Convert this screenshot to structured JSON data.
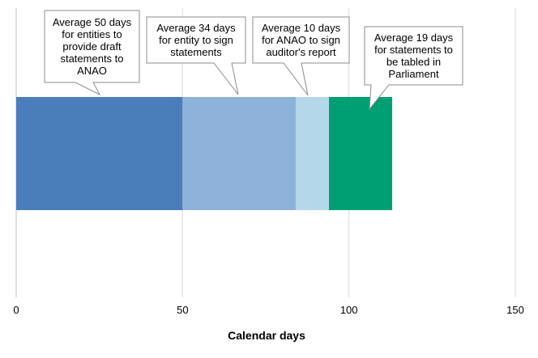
{
  "chart_data": {
    "type": "bar",
    "orientation": "horizontal",
    "stacked": true,
    "xlabel": "Calendar days",
    "ylabel": "",
    "title": "",
    "xlim": [
      0,
      150
    ],
    "x_ticks": [
      0,
      50,
      100,
      150
    ],
    "grid": true,
    "series": [
      {
        "values": [
          50
        ],
        "color": "#4a7ebb",
        "callout": "Average 50 days\nfor entities to\nprovide draft\nstatements to\nANAO"
      },
      {
        "values": [
          34
        ],
        "color": "#8fb2da",
        "callout": "Average 34 days\nfor entity to sign\nstatements"
      },
      {
        "values": [
          10
        ],
        "color": "#b5d7ea",
        "callout": "Average 10 days\nfor ANAO to sign\nauditor's report"
      },
      {
        "values": [
          19
        ],
        "color": "#009e73",
        "callout": "Average 19 days\nfor statements to\nbe tabled in\nParliament"
      }
    ]
  }
}
